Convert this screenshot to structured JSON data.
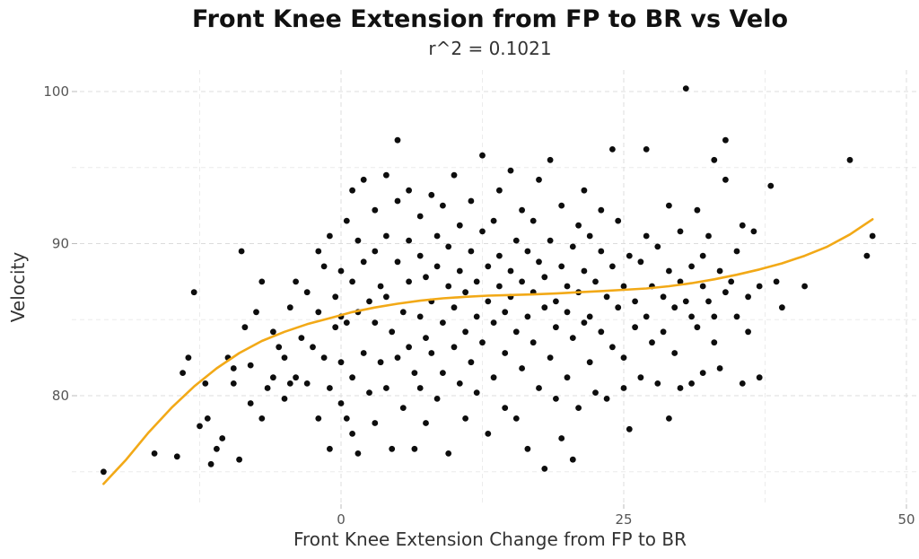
{
  "chart_data": {
    "type": "scatter",
    "title": "Front Knee Extension from FP to BR vs Velo",
    "subtitle": "r^2 = 0.1021",
    "xlabel": "Front Knee Extension Change from FP to BR",
    "ylabel": "Velocity",
    "xlim": [
      -21,
      51
    ],
    "ylim": [
      73.8,
      101.5
    ],
    "x_ticks": [
      0,
      25,
      50
    ],
    "x_tick_labels": [
      "0",
      "25",
      "50"
    ],
    "x_minor_ticks": [
      -12.5,
      12.5,
      37.5
    ],
    "y_ticks": [
      80,
      90,
      100
    ],
    "y_tick_labels": [
      "80",
      "90",
      "100"
    ],
    "y_minor_ticks": [
      75,
      85,
      95
    ],
    "grid": true,
    "legend": "none",
    "colors": {
      "points": "#0d0d0d",
      "fit_line": "#f2a917",
      "grid": "#dcdcdc"
    },
    "series": [
      {
        "type": "scatter",
        "points": [
          [
            -21,
            75
          ],
          [
            -16.5,
            76.2
          ],
          [
            -14.5,
            76
          ],
          [
            -14,
            81.5
          ],
          [
            -13.5,
            82.5
          ],
          [
            -13,
            86.8
          ],
          [
            -12.5,
            78
          ],
          [
            -12,
            80.8
          ],
          [
            -11.8,
            78.5
          ],
          [
            -11.5,
            75.5
          ],
          [
            -11,
            76.5
          ],
          [
            -10.5,
            77.2
          ],
          [
            -10,
            82.5
          ],
          [
            -9.5,
            81.8
          ],
          [
            -9.5,
            80.8
          ],
          [
            -9,
            75.8
          ],
          [
            -8.8,
            89.5
          ],
          [
            -8.5,
            84.5
          ],
          [
            -8,
            82
          ],
          [
            -8,
            79.5
          ],
          [
            -7.5,
            85.5
          ],
          [
            -7,
            87.5
          ],
          [
            -7,
            78.5
          ],
          [
            -6.5,
            80.5
          ],
          [
            -6,
            81.2
          ],
          [
            -6,
            84.2
          ],
          [
            -5.5,
            83.2
          ],
          [
            -5,
            82.5
          ],
          [
            -5,
            79.8
          ],
          [
            -4.5,
            80.8
          ],
          [
            -4.5,
            85.8
          ],
          [
            -4,
            87.5
          ],
          [
            -4,
            81.2
          ],
          [
            -3.5,
            83.8
          ],
          [
            -3,
            80.8
          ],
          [
            -3,
            86.8
          ],
          [
            -2.5,
            83.2
          ],
          [
            -2,
            89.5
          ],
          [
            -2,
            85.5
          ],
          [
            -2,
            78.5
          ],
          [
            -1.5,
            88.5
          ],
          [
            -1.5,
            82.5
          ],
          [
            -1,
            90.5
          ],
          [
            -1,
            80.5
          ],
          [
            -1,
            76.5
          ],
          [
            -0.5,
            84.5
          ],
          [
            -0.5,
            86.5
          ],
          [
            0,
            85.2
          ],
          [
            0,
            82.2
          ],
          [
            0,
            79.5
          ],
          [
            0,
            88.2
          ],
          [
            0.5,
            91.5
          ],
          [
            0.5,
            78.5
          ],
          [
            0.5,
            84.8
          ],
          [
            1,
            87.5
          ],
          [
            1,
            81.2
          ],
          [
            1,
            93.5
          ],
          [
            1,
            77.5
          ],
          [
            1.5,
            90.2
          ],
          [
            1.5,
            85.5
          ],
          [
            1.5,
            76.2
          ],
          [
            2,
            94.2
          ],
          [
            2,
            82.8
          ],
          [
            2,
            88.8
          ],
          [
            2.5,
            86.2
          ],
          [
            2.5,
            80.2
          ],
          [
            3,
            92.2
          ],
          [
            3,
            84.8
          ],
          [
            3,
            78.2
          ],
          [
            3,
            89.5
          ],
          [
            3.5,
            87.2
          ],
          [
            3.5,
            82.2
          ],
          [
            4,
            94.5
          ],
          [
            4,
            90.5
          ],
          [
            4,
            80.5
          ],
          [
            4,
            86.5
          ],
          [
            4.5,
            76.5
          ],
          [
            4.5,
            84.2
          ],
          [
            5,
            92.8
          ],
          [
            5,
            88.8
          ],
          [
            5,
            82.5
          ],
          [
            5,
            96.8
          ],
          [
            5.5,
            85.5
          ],
          [
            5.5,
            79.2
          ],
          [
            6,
            90.2
          ],
          [
            6,
            87.5
          ],
          [
            6,
            83.2
          ],
          [
            6,
            93.5
          ],
          [
            6.5,
            81.5
          ],
          [
            6.5,
            76.5
          ],
          [
            7,
            89.2
          ],
          [
            7,
            85.2
          ],
          [
            7,
            91.8
          ],
          [
            7,
            80.5
          ],
          [
            7.5,
            87.8
          ],
          [
            7.5,
            83.8
          ],
          [
            7.5,
            78.2
          ],
          [
            8,
            93.2
          ],
          [
            8,
            86.2
          ],
          [
            8,
            82.8
          ],
          [
            8.5,
            90.5
          ],
          [
            8.5,
            88.5
          ],
          [
            8.5,
            79.8
          ],
          [
            9,
            84.8
          ],
          [
            9,
            92.5
          ],
          [
            9,
            81.5
          ],
          [
            9.5,
            87.2
          ],
          [
            9.5,
            89.8
          ],
          [
            9.5,
            76.2
          ],
          [
            10,
            85.8
          ],
          [
            10,
            83.2
          ],
          [
            10,
            94.5
          ],
          [
            10.5,
            88.2
          ],
          [
            10.5,
            80.8
          ],
          [
            10.5,
            91.2
          ],
          [
            11,
            86.8
          ],
          [
            11,
            84.2
          ],
          [
            11,
            78.5
          ],
          [
            11.5,
            89.5
          ],
          [
            11.5,
            82.2
          ],
          [
            11.5,
            92.8
          ],
          [
            12,
            87.5
          ],
          [
            12,
            85.2
          ],
          [
            12,
            80.2
          ],
          [
            12.5,
            90.8
          ],
          [
            12.5,
            95.8
          ],
          [
            12.5,
            83.5
          ],
          [
            13,
            88.5
          ],
          [
            13,
            86.2
          ],
          [
            13,
            77.5
          ],
          [
            13.5,
            84.8
          ],
          [
            13.5,
            91.5
          ],
          [
            13.5,
            81.2
          ],
          [
            14,
            87.2
          ],
          [
            14,
            89.2
          ],
          [
            14,
            93.5
          ],
          [
            14.5,
            85.5
          ],
          [
            14.5,
            82.8
          ],
          [
            14.5,
            79.2
          ],
          [
            15,
            88.2
          ],
          [
            15,
            86.5
          ],
          [
            15,
            94.8
          ],
          [
            15.5,
            90.2
          ],
          [
            15.5,
            84.2
          ],
          [
            15.5,
            78.5
          ],
          [
            16,
            87.5
          ],
          [
            16,
            92.2
          ],
          [
            16,
            81.8
          ],
          [
            16.5,
            85.2
          ],
          [
            16.5,
            89.5
          ],
          [
            16.5,
            76.5
          ],
          [
            17,
            86.8
          ],
          [
            17,
            83.5
          ],
          [
            17,
            91.5
          ],
          [
            17.5,
            88.8
          ],
          [
            17.5,
            80.5
          ],
          [
            17.5,
            94.2
          ],
          [
            18,
            85.8
          ],
          [
            18,
            87.8
          ],
          [
            18,
            75.2
          ],
          [
            18.5,
            90.2
          ],
          [
            18.5,
            82.5
          ],
          [
            18.5,
            95.5
          ],
          [
            19,
            86.2
          ],
          [
            19,
            84.5
          ],
          [
            19,
            79.8
          ],
          [
            19.5,
            88.5
          ],
          [
            19.5,
            92.5
          ],
          [
            19.5,
            77.2
          ],
          [
            20,
            85.5
          ],
          [
            20,
            87.2
          ],
          [
            20,
            81.2
          ],
          [
            20.5,
            89.8
          ],
          [
            20.5,
            83.8
          ],
          [
            20.5,
            75.8
          ],
          [
            21,
            86.8
          ],
          [
            21,
            91.2
          ],
          [
            21,
            79.2
          ],
          [
            21.5,
            88.2
          ],
          [
            21.5,
            84.8
          ],
          [
            21.5,
            93.5
          ],
          [
            22,
            85.2
          ],
          [
            22,
            82.2
          ],
          [
            22,
            90.5
          ],
          [
            22.5,
            87.5
          ],
          [
            22.5,
            80.2
          ],
          [
            23,
            89.5
          ],
          [
            23,
            84.2
          ],
          [
            23,
            92.2
          ],
          [
            23.5,
            86.5
          ],
          [
            23.5,
            79.8
          ],
          [
            24,
            88.5
          ],
          [
            24,
            83.2
          ],
          [
            24,
            96.2
          ],
          [
            24.5,
            85.8
          ],
          [
            24.5,
            91.5
          ],
          [
            25,
            87.2
          ],
          [
            25,
            82.5
          ],
          [
            25,
            80.5
          ],
          [
            25.5,
            89.2
          ],
          [
            25.5,
            77.8
          ],
          [
            26,
            86.2
          ],
          [
            26,
            84.5
          ],
          [
            26.5,
            88.8
          ],
          [
            26.5,
            81.2
          ],
          [
            27,
            90.5
          ],
          [
            27,
            85.2
          ],
          [
            27,
            96.2
          ],
          [
            27.5,
            87.2
          ],
          [
            27.5,
            83.5
          ],
          [
            28,
            89.8
          ],
          [
            28,
            80.8
          ],
          [
            28.5,
            86.5
          ],
          [
            28.5,
            84.2
          ],
          [
            29,
            88.2
          ],
          [
            29,
            92.5
          ],
          [
            29,
            78.5
          ],
          [
            29.5,
            85.8
          ],
          [
            29.5,
            82.8
          ],
          [
            30,
            87.5
          ],
          [
            30,
            80.5
          ],
          [
            30,
            90.8
          ],
          [
            30.5,
            86.2
          ],
          [
            30.5,
            100.2
          ],
          [
            31,
            85.2
          ],
          [
            31,
            88.5
          ],
          [
            31,
            80.8
          ],
          [
            31.5,
            92.2
          ],
          [
            31.5,
            84.5
          ],
          [
            32,
            87.2
          ],
          [
            32,
            89.2
          ],
          [
            32,
            81.5
          ],
          [
            32.5,
            86.2
          ],
          [
            32.5,
            90.5
          ],
          [
            33,
            85.2
          ],
          [
            33,
            83.5
          ],
          [
            33,
            95.5
          ],
          [
            33.5,
            88.2
          ],
          [
            33.5,
            81.8
          ],
          [
            34,
            86.8
          ],
          [
            34,
            96.8
          ],
          [
            34,
            94.2
          ],
          [
            34.5,
            87.5
          ],
          [
            35,
            89.5
          ],
          [
            35,
            85.2
          ],
          [
            35.5,
            80.8
          ],
          [
            35.5,
            91.2
          ],
          [
            36,
            86.5
          ],
          [
            36,
            84.2
          ],
          [
            36.5,
            90.8
          ],
          [
            37,
            87.2
          ],
          [
            37,
            81.2
          ],
          [
            38,
            93.8
          ],
          [
            38.5,
            87.5
          ],
          [
            39,
            85.8
          ],
          [
            41,
            87.2
          ],
          [
            45,
            95.5
          ],
          [
            46.5,
            89.2
          ],
          [
            47,
            90.5
          ]
        ]
      },
      {
        "type": "line",
        "points": [
          [
            -21,
            74.2
          ],
          [
            -19,
            75.8
          ],
          [
            -17,
            77.6
          ],
          [
            -15,
            79.2
          ],
          [
            -13,
            80.6
          ],
          [
            -11,
            81.8
          ],
          [
            -9,
            82.8
          ],
          [
            -7,
            83.6
          ],
          [
            -5,
            84.2
          ],
          [
            -3,
            84.7
          ],
          [
            -1,
            85.1
          ],
          [
            1,
            85.5
          ],
          [
            3,
            85.8
          ],
          [
            5,
            86.05
          ],
          [
            7,
            86.25
          ],
          [
            9,
            86.4
          ],
          [
            11,
            86.5
          ],
          [
            13,
            86.58
          ],
          [
            15,
            86.62
          ],
          [
            17,
            86.66
          ],
          [
            19,
            86.72
          ],
          [
            21,
            86.8
          ],
          [
            23,
            86.88
          ],
          [
            25,
            86.96
          ],
          [
            27,
            87.05
          ],
          [
            29,
            87.2
          ],
          [
            31,
            87.4
          ],
          [
            33,
            87.65
          ],
          [
            35,
            87.95
          ],
          [
            37,
            88.3
          ],
          [
            39,
            88.7
          ],
          [
            41,
            89.2
          ],
          [
            43,
            89.8
          ],
          [
            45,
            90.6
          ],
          [
            47,
            91.6
          ]
        ]
      }
    ]
  }
}
